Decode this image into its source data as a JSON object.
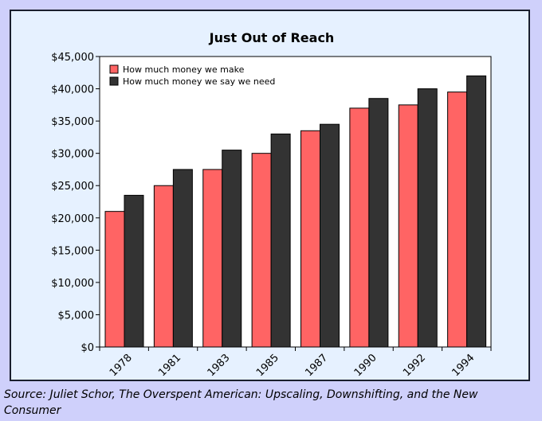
{
  "chart_data": {
    "type": "bar",
    "title": "Just Out of Reach",
    "xlabel": "",
    "ylabel": "",
    "categories": [
      "1978",
      "1981",
      "1983",
      "1985",
      "1987",
      "1990",
      "1992",
      "1994"
    ],
    "series": [
      {
        "name": "How much money we make",
        "color": "#ff6464",
        "values": [
          21000,
          25000,
          27500,
          30000,
          33500,
          37000,
          37500,
          39500
        ]
      },
      {
        "name": "How much money we say we need",
        "color": "#333333",
        "values": [
          23500,
          27500,
          30500,
          33000,
          34500,
          38500,
          40000,
          42000
        ]
      }
    ],
    "ylim": [
      0,
      45000
    ],
    "yticks": [
      0,
      5000,
      10000,
      15000,
      20000,
      25000,
      30000,
      35000,
      40000,
      45000
    ],
    "ytick_labels": [
      "$0",
      "$5,000",
      "$10,000",
      "$15,000",
      "$20,000",
      "$25,000",
      "$30,000",
      "$35,000",
      "$40,000",
      "$45,000"
    ],
    "legend_position": "top-left",
    "grid": false
  },
  "source": "Source: Juliet Schor, The Overspent American: Upscaling, Downshifting, and the New Consumer",
  "colors": {
    "background": "#cfd0fb",
    "frame_bg": "#e6f1ff",
    "plot_bg": "#ffffff"
  }
}
